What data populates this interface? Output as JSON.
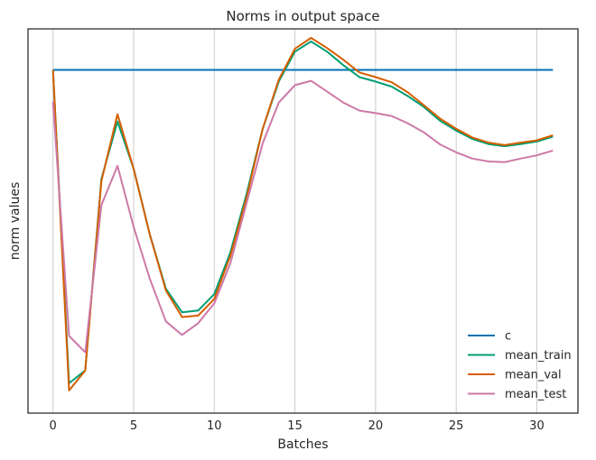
{
  "chart_data": {
    "type": "line",
    "title": "Norms in output space",
    "xlabel": "Batches",
    "ylabel": "norm values",
    "xlim": [
      -1.55,
      32.55
    ],
    "ylim": [
      0,
      1
    ],
    "x_ticks": [
      0,
      5,
      10,
      15,
      20,
      25,
      30
    ],
    "y_ticks_shown": false,
    "grid": "vertical",
    "legend_position": "lower-right",
    "series": [
      {
        "name": "c",
        "color": "#0072b2",
        "x": [
          0,
          31
        ],
        "values": [
          0.912,
          0.912
        ]
      },
      {
        "name": "mean_train",
        "color": "#009e73",
        "x": [
          0,
          1,
          2,
          3,
          4,
          5,
          6,
          7,
          8,
          9,
          10,
          11,
          12,
          13,
          14,
          15,
          16,
          17,
          18,
          19,
          20,
          21,
          22,
          23,
          24,
          25,
          26,
          27,
          28,
          29,
          30,
          31
        ],
        "values": [
          0.912,
          0.05,
          0.085,
          0.612,
          0.77,
          0.64,
          0.46,
          0.31,
          0.245,
          0.25,
          0.295,
          0.41,
          0.57,
          0.75,
          0.88,
          0.962,
          0.99,
          0.962,
          0.925,
          0.892,
          0.88,
          0.866,
          0.84,
          0.81,
          0.772,
          0.745,
          0.722,
          0.708,
          0.702,
          0.708,
          0.715,
          0.728
        ]
      },
      {
        "name": "mean_val",
        "color": "#d55e00",
        "x": [
          0,
          1,
          2,
          3,
          4,
          5,
          6,
          7,
          8,
          9,
          10,
          11,
          12,
          13,
          14,
          15,
          16,
          17,
          18,
          19,
          20,
          21,
          22,
          23,
          24,
          25,
          26,
          27,
          28,
          29,
          30,
          31
        ],
        "values": [
          0.912,
          0.03,
          0.085,
          0.606,
          0.79,
          0.64,
          0.46,
          0.305,
          0.232,
          0.236,
          0.282,
          0.4,
          0.56,
          0.75,
          0.885,
          0.97,
          1.0,
          0.972,
          0.94,
          0.905,
          0.892,
          0.878,
          0.85,
          0.815,
          0.778,
          0.75,
          0.726,
          0.712,
          0.705,
          0.712,
          0.718,
          0.732
        ]
      },
      {
        "name": "mean_test",
        "color": "#cc79a7",
        "x": [
          0,
          1,
          2,
          3,
          4,
          5,
          6,
          7,
          8,
          9,
          10,
          11,
          12,
          13,
          14,
          15,
          16,
          17,
          18,
          19,
          20,
          21,
          22,
          23,
          24,
          25,
          26,
          27,
          28,
          29,
          30,
          31
        ],
        "values": [
          0.825,
          0.18,
          0.135,
          0.54,
          0.648,
          0.48,
          0.338,
          0.22,
          0.183,
          0.215,
          0.27,
          0.38,
          0.545,
          0.71,
          0.822,
          0.87,
          0.882,
          0.852,
          0.822,
          0.8,
          0.793,
          0.785,
          0.765,
          0.74,
          0.707,
          0.685,
          0.668,
          0.66,
          0.658,
          0.668,
          0.677,
          0.69
        ]
      }
    ]
  }
}
